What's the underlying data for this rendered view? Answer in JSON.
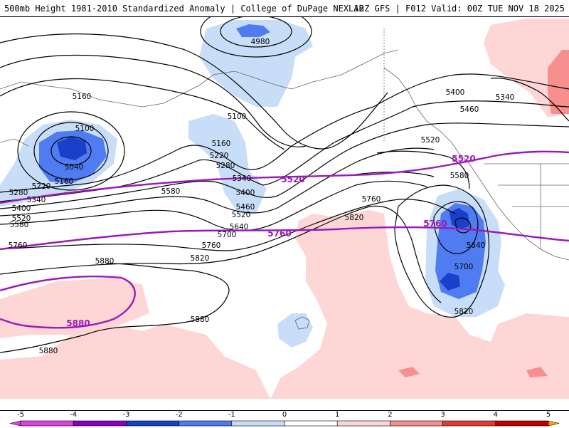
{
  "header": {
    "title_left": "500mb Height 1981-2010 Standardized Anomaly | College of DuPage NEXLAB",
    "title_right": "12Z GFS | F012 Valid: 00Z TUE NOV 18 2025"
  },
  "colors": {
    "anom_-5": "#e040e0",
    "anom_-4": "#8800cc",
    "anom_-3": "#1a3fc8",
    "anom_-2": "#4f7cf0",
    "anom_-1": "#c8def8",
    "anom_0": "#ffffff",
    "anom_1": "#ffd6d6",
    "anom_2": "#f78f8f",
    "anom_3": "#e63a3a",
    "anom_4": "#c00000",
    "anom_5": "#ffa500",
    "contour": "#000000",
    "climo_contour": "#9a1ab8",
    "coastline": "#666666"
  },
  "colorbar": {
    "ticks": [
      "-5",
      "-4",
      "-3",
      "-2",
      "-1",
      "0",
      "1",
      "2",
      "3",
      "4",
      "5"
    ]
  },
  "contour_labels": {
    "h4980": "4980",
    "h5040": "5040",
    "h5100a": "5100",
    "h5100b": "5100",
    "h5160a": "5160",
    "h5160b": "5160",
    "h5160c": "5160",
    "h5220a": "5220",
    "h5220b": "5220",
    "h5280a": "5280",
    "h5280b": "5280",
    "h5340a": "5340",
    "h5340b": "5340",
    "h5340c": "5340",
    "h5400a": "5400",
    "h5400b": "5400",
    "h5400c": "5400",
    "h5460a": "5460",
    "h5460b": "5460",
    "h5520a": "5520",
    "h5520b": "5520",
    "h5520c": "5520",
    "h5580a": "5580",
    "h5580b": "5580",
    "h5580c": "5580",
    "h5640a": "5640",
    "h5640b": "5640",
    "h5700a": "5700",
    "h5700b": "5700",
    "h5760a": "5760",
    "h5760b": "5760",
    "h5760c": "5760",
    "h5820a": "5820",
    "h5820b": "5820",
    "h5820c": "5820",
    "h5880a": "5880",
    "h5880b": "5880",
    "h5880c": "5880",
    "c5520a": "5520",
    "c5520b": "5520",
    "c5760a": "5760",
    "c5760b": "5760",
    "c5880": "5880"
  }
}
